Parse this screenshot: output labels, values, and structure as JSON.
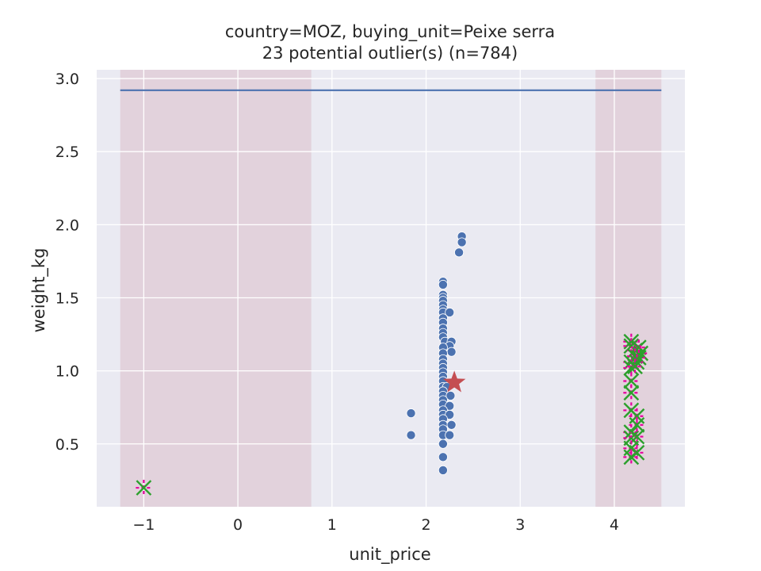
{
  "chart_data": {
    "type": "scatter",
    "title": "country=MOZ, buying_unit=Peixe serra",
    "subtitle": "23 potential outlier(s) (n=784)",
    "xlabel": "unit_price",
    "ylabel": "weight_kg",
    "xlim": [
      -1.5,
      4.75
    ],
    "ylim": [
      0.07,
      3.06
    ],
    "x_ticks": [
      -1,
      0,
      1,
      2,
      3,
      4
    ],
    "x_tick_labels": [
      "−1",
      "0",
      "1",
      "2",
      "3",
      "4"
    ],
    "y_ticks": [
      0.5,
      1.0,
      1.5,
      2.0,
      2.5,
      3.0
    ],
    "y_tick_labels": [
      "0.5",
      "1.0",
      "1.5",
      "2.0",
      "2.5",
      "3.0"
    ],
    "grid": true,
    "colors": {
      "background": "#eaeaf2",
      "grid": "#ffffff",
      "points": "#4c72b0",
      "reference_line": "#4c72b0",
      "outlier_cross": "#2ca02c",
      "outlier_plus": "#e6009e",
      "star": "#c44e52",
      "shaded_region": "#d9b6c0"
    },
    "shaded_regions": [
      {
        "x0": -1.25,
        "x1": 0.78
      },
      {
        "x0": 3.8,
        "x1": 4.5
      }
    ],
    "reference_line": {
      "x0": -1.25,
      "x1": 4.5,
      "y": 2.92
    },
    "median_star": {
      "x": 2.3,
      "y": 0.92
    },
    "series": [
      {
        "marker": "circle",
        "points": [
          [
            2.38,
            1.92
          ],
          [
            2.38,
            1.88
          ],
          [
            2.35,
            1.81
          ],
          [
            2.18,
            1.61
          ],
          [
            2.18,
            1.59
          ],
          [
            2.18,
            1.52
          ],
          [
            2.18,
            1.5
          ],
          [
            2.18,
            1.48
          ],
          [
            2.18,
            1.45
          ],
          [
            2.18,
            1.42
          ],
          [
            2.18,
            1.4
          ],
          [
            2.25,
            1.4
          ],
          [
            2.18,
            1.36
          ],
          [
            2.18,
            1.33
          ],
          [
            2.18,
            1.29
          ],
          [
            2.18,
            1.26
          ],
          [
            2.18,
            1.23
          ],
          [
            2.2,
            1.2
          ],
          [
            2.27,
            1.2
          ],
          [
            2.25,
            1.17
          ],
          [
            2.18,
            1.16
          ],
          [
            2.27,
            1.13
          ],
          [
            2.18,
            1.12
          ],
          [
            2.18,
            1.08
          ],
          [
            2.18,
            1.05
          ],
          [
            2.18,
            1.02
          ],
          [
            2.18,
            0.99
          ],
          [
            2.18,
            0.96
          ],
          [
            2.18,
            0.93
          ],
          [
            2.18,
            0.89
          ],
          [
            2.22,
            0.89
          ],
          [
            2.18,
            0.86
          ],
          [
            2.18,
            0.83
          ],
          [
            2.26,
            0.83
          ],
          [
            2.18,
            0.8
          ],
          [
            2.18,
            0.77
          ],
          [
            2.25,
            0.76
          ],
          [
            2.18,
            0.73
          ],
          [
            2.18,
            0.7
          ],
          [
            2.25,
            0.7
          ],
          [
            2.18,
            0.67
          ],
          [
            2.18,
            0.63
          ],
          [
            2.27,
            0.63
          ],
          [
            2.18,
            0.6
          ],
          [
            2.18,
            0.56
          ],
          [
            2.25,
            0.56
          ],
          [
            2.18,
            0.5
          ],
          [
            2.18,
            0.41
          ],
          [
            2.18,
            0.32
          ],
          [
            1.84,
            0.71
          ],
          [
            1.84,
            0.56
          ]
        ]
      },
      {
        "marker": "x",
        "points": [
          [
            -1.0,
            0.2
          ],
          [
            4.18,
            1.2
          ],
          [
            4.18,
            1.17
          ],
          [
            4.22,
            1.14
          ],
          [
            4.26,
            1.16
          ],
          [
            4.28,
            1.12
          ],
          [
            4.22,
            1.1
          ],
          [
            4.26,
            1.09
          ],
          [
            4.18,
            1.06
          ],
          [
            4.24,
            1.06
          ],
          [
            4.18,
            1.02
          ],
          [
            4.22,
            1.03
          ],
          [
            4.18,
            0.93
          ],
          [
            4.18,
            0.85
          ],
          [
            4.18,
            0.73
          ],
          [
            4.24,
            0.69
          ],
          [
            4.24,
            0.63
          ],
          [
            4.18,
            0.58
          ],
          [
            4.18,
            0.54
          ],
          [
            4.24,
            0.55
          ],
          [
            4.18,
            0.47
          ],
          [
            4.18,
            0.41
          ],
          [
            4.24,
            0.44
          ]
        ]
      }
    ]
  }
}
